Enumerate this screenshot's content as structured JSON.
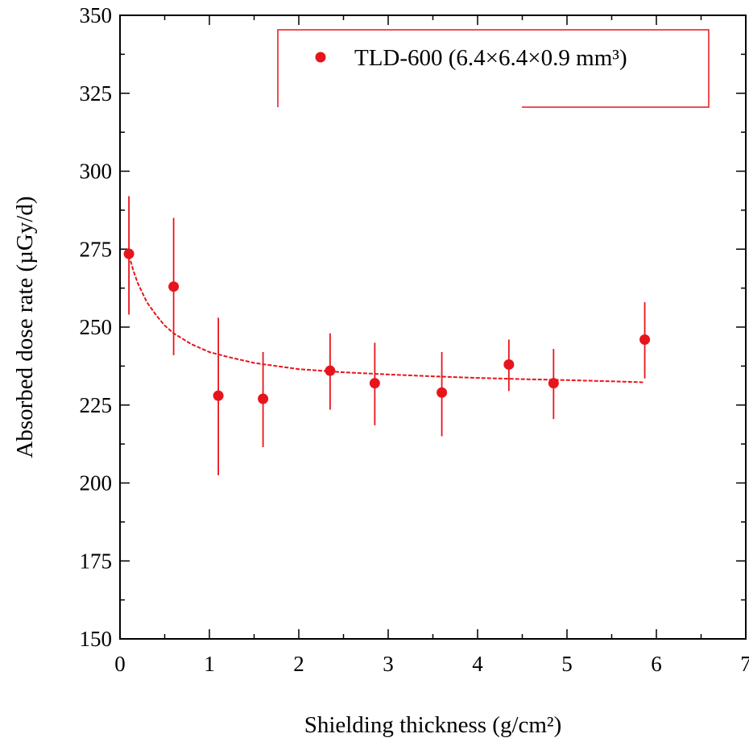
{
  "chart_data": {
    "type": "scatter",
    "title": "",
    "xlabel": "Shielding thickness (g/cm²)",
    "ylabel": "Absorbed dose rate (µGy/d)",
    "xlim": [
      0,
      7
    ],
    "ylim": [
      150,
      350
    ],
    "xticks": [
      "0",
      "1",
      "2",
      "3",
      "4",
      "5",
      "6",
      "7"
    ],
    "yticks": [
      "150",
      "175",
      "200",
      "225",
      "250",
      "275",
      "300",
      "325",
      "350"
    ],
    "grid": false,
    "legend_position": "top-right",
    "series": [
      {
        "name": "TLD-600 (6.4×6.4×0.9 mm³)",
        "color": "#e8141c",
        "x": [
          0.1,
          0.6,
          1.1,
          1.6,
          2.35,
          2.85,
          3.6,
          4.35,
          4.85,
          5.87
        ],
        "y": [
          273.5,
          263,
          228,
          227,
          236,
          232,
          229,
          238,
          232,
          246
        ],
        "err_low": [
          254,
          241,
          202.5,
          211.5,
          223.5,
          218.5,
          215,
          229.5,
          220.5,
          233.5
        ],
        "err_high": [
          292,
          285,
          253,
          242,
          248,
          245,
          242,
          246,
          243,
          258
        ]
      }
    ],
    "fit_curve": {
      "color": "#e8141c",
      "style": "dashed",
      "x": [
        0.1,
        0.15,
        0.2,
        0.3,
        0.4,
        0.5,
        0.6,
        0.8,
        1.0,
        1.2,
        1.5,
        2.0,
        2.5,
        3.0,
        3.5,
        4.0,
        4.5,
        5.0,
        5.5,
        5.85
      ],
      "y": [
        273,
        268,
        264,
        258,
        254,
        250.5,
        248,
        244.5,
        242,
        240.5,
        238.5,
        236.5,
        235.5,
        234.8,
        234.2,
        233.7,
        233.3,
        233,
        232.6,
        232.3
      ]
    }
  }
}
